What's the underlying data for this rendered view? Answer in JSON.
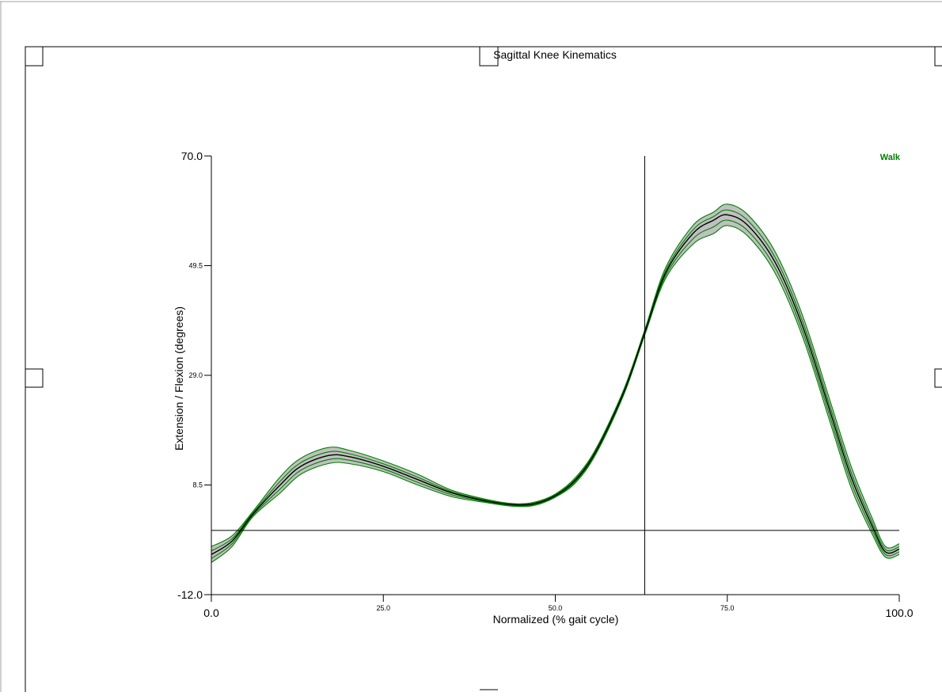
{
  "chart_data": {
    "type": "line",
    "title": "Sagittal Knee Kinematics",
    "xlabel": "Normalized (% gait cycle)",
    "ylabel": "Extension / Flexion (degrees)",
    "xlim": [
      0,
      100
    ],
    "ylim": [
      -12,
      70
    ],
    "xticks_major": [
      "0.0",
      "100.0"
    ],
    "xticks_minor": [
      "25.0",
      "50.0",
      "75.0"
    ],
    "yticks_major": [
      "-12.0",
      "70.0"
    ],
    "yticks_minor": [
      "8.5",
      "29.0",
      "49.5"
    ],
    "legend": {
      "label": "Walk",
      "position": "top-right",
      "color": "#008000"
    },
    "reference_lines": {
      "vertical_x": 63,
      "horizontal_y": 0
    },
    "colors": {
      "mean": "#000000",
      "band_fill": "#c0c0c0",
      "trials": "#008000"
    },
    "x": [
      0,
      3,
      6,
      10,
      13,
      17,
      20,
      25,
      30,
      35,
      40,
      44,
      47,
      50,
      53,
      56,
      60,
      63,
      66,
      70,
      73,
      75,
      78,
      82,
      86,
      90,
      93,
      96,
      98,
      100
    ],
    "series": [
      {
        "role": "mean",
        "values": [
          -4.5,
          -2,
          3,
          8.5,
          12,
          14,
          13.8,
          12,
          9.5,
          7,
          5.5,
          4.8,
          5,
          6.5,
          9.5,
          15,
          26,
          37,
          48,
          55.5,
          58,
          59,
          57,
          50,
          38,
          22,
          10,
          1,
          -4,
          -3.5
        ]
      },
      {
        "role": "band_upper",
        "values": [
          -3,
          -1,
          3.5,
          10,
          13.5,
          15.5,
          15,
          13,
          10.5,
          7.5,
          5.8,
          5,
          5.3,
          6.8,
          10,
          15.5,
          26.5,
          37.5,
          49,
          57,
          59.5,
          61,
          59,
          52,
          40,
          24,
          12,
          2.5,
          -3,
          -2.5
        ]
      },
      {
        "role": "band_lower",
        "values": [
          -6,
          -3,
          2.5,
          7,
          10.5,
          12.5,
          12.5,
          11,
          8.5,
          6.3,
          5.2,
          4.5,
          4.7,
          6.2,
          9,
          14.5,
          25.5,
          36.5,
          47,
          53.5,
          55.5,
          57,
          55,
          48,
          36,
          20,
          8,
          -0.5,
          -5,
          -4.5
        ]
      }
    ]
  }
}
